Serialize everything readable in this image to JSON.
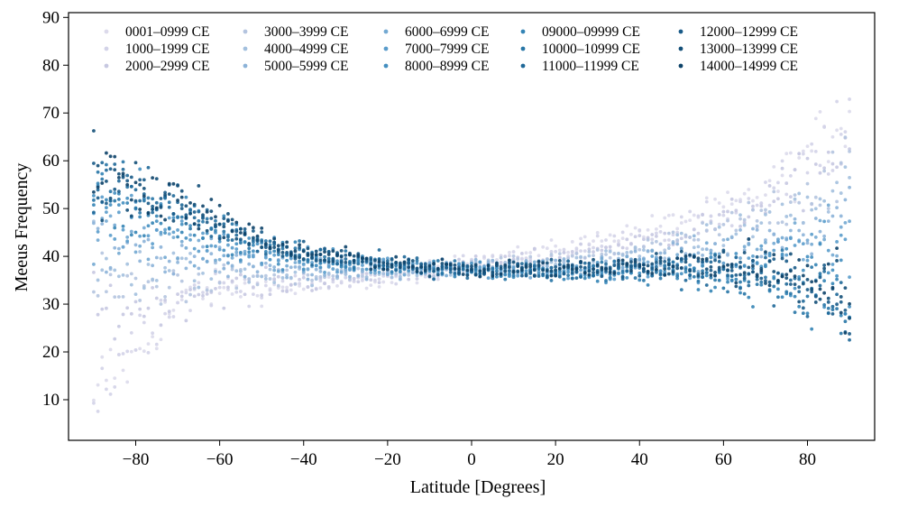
{
  "chart_data": {
    "type": "scatter",
    "title": "",
    "xlabel": "Latitude [Degrees]",
    "ylabel": "Meeus Frequency",
    "xlim": [
      -96,
      96
    ],
    "ylim": [
      1.5,
      91
    ],
    "xticks": [
      -80,
      -60,
      -40,
      -20,
      0,
      20,
      40,
      60,
      80
    ],
    "xtick_labels": [
      "−80",
      "−60",
      "−40",
      "−20",
      "0",
      "20",
      "40",
      "60",
      "80"
    ],
    "yticks": [
      10,
      20,
      30,
      40,
      50,
      60,
      70,
      80,
      90
    ],
    "ytick_labels": [
      "10",
      "20",
      "30",
      "40",
      "50",
      "60",
      "70",
      "80",
      "90"
    ],
    "grid": false,
    "legend_position": "top",
    "legend_columns": 5,
    "x_step_degrees": 1,
    "x_range": [
      -90,
      90
    ],
    "series": [
      {
        "name": "0001–0999 CE",
        "color": "#dcdaeb",
        "anchors": [
          [
            -90,
            5.7
          ],
          [
            -88,
            14.8
          ],
          [
            -85,
            16.5
          ],
          [
            -80,
            18
          ],
          [
            -77,
            23
          ],
          [
            -72,
            28.5
          ],
          [
            -65,
            32.5
          ],
          [
            -55,
            33.5
          ],
          [
            -45,
            33.3
          ],
          [
            -35,
            33.8
          ],
          [
            -20,
            35
          ],
          [
            0,
            39
          ],
          [
            20,
            41.5
          ],
          [
            40,
            45.5
          ],
          [
            55,
            48.5
          ],
          [
            65,
            51
          ],
          [
            75,
            57
          ],
          [
            85,
            66
          ],
          [
            90,
            71
          ]
        ]
      },
      {
        "name": "1000–1999 CE",
        "color": "#d3d3e8",
        "anchors": [
          [
            -90,
            9.8
          ],
          [
            -87,
            14
          ],
          [
            -82,
            22
          ],
          [
            -77,
            26
          ],
          [
            -72,
            30
          ],
          [
            -65,
            33
          ],
          [
            -55,
            33.5
          ],
          [
            -45,
            34
          ],
          [
            -35,
            34.5
          ],
          [
            -20,
            35.5
          ],
          [
            0,
            38.5
          ],
          [
            20,
            40.5
          ],
          [
            40,
            44
          ],
          [
            55,
            47
          ],
          [
            65,
            50
          ],
          [
            75,
            55
          ],
          [
            85,
            63
          ],
          [
            90,
            68
          ]
        ]
      },
      {
        "name": "2000–2999 CE",
        "color": "#c7c8e1",
        "anchors": [
          [
            -90,
            28
          ],
          [
            -85,
            28.5
          ],
          [
            -78,
            30
          ],
          [
            -70,
            32
          ],
          [
            -60,
            33.5
          ],
          [
            -50,
            34
          ],
          [
            -40,
            34.5
          ],
          [
            -20,
            36
          ],
          [
            0,
            38
          ],
          [
            20,
            40
          ],
          [
            40,
            43
          ],
          [
            55,
            46
          ],
          [
            65,
            49
          ],
          [
            75,
            53
          ],
          [
            85,
            60
          ],
          [
            90,
            64
          ]
        ]
      },
      {
        "name": "3000–3999 CE",
        "color": "#b4c4df",
        "anchors": [
          [
            -90,
            32
          ],
          [
            -80,
            33
          ],
          [
            -70,
            34.5
          ],
          [
            -60,
            35.5
          ],
          [
            -50,
            35.5
          ],
          [
            -40,
            35.5
          ],
          [
            -20,
            36.5
          ],
          [
            0,
            37.5
          ],
          [
            20,
            39
          ],
          [
            40,
            41.5
          ],
          [
            55,
            44
          ],
          [
            65,
            47.5
          ],
          [
            75,
            51
          ],
          [
            85,
            56
          ],
          [
            90,
            60
          ]
        ]
      },
      {
        "name": "4000–4999 CE",
        "color": "#a3c0de",
        "anchors": [
          [
            -90,
            37
          ],
          [
            -80,
            37
          ],
          [
            -70,
            37.5
          ],
          [
            -60,
            37.5
          ],
          [
            -50,
            37
          ],
          [
            -40,
            36.5
          ],
          [
            -20,
            37
          ],
          [
            0,
            37.5
          ],
          [
            20,
            38.5
          ],
          [
            40,
            40.5
          ],
          [
            55,
            42.5
          ],
          [
            65,
            45
          ],
          [
            75,
            48.5
          ],
          [
            85,
            52
          ],
          [
            90,
            56
          ]
        ]
      },
      {
        "name": "5000–5999 CE",
        "color": "#8cb3d8",
        "anchors": [
          [
            -90,
            42
          ],
          [
            -80,
            41
          ],
          [
            -70,
            40
          ],
          [
            -60,
            39
          ],
          [
            -50,
            38
          ],
          [
            -40,
            37.5
          ],
          [
            -20,
            37.5
          ],
          [
            0,
            37.5
          ],
          [
            20,
            38
          ],
          [
            40,
            39.5
          ],
          [
            55,
            41
          ],
          [
            65,
            43
          ],
          [
            75,
            45.5
          ],
          [
            85,
            48
          ],
          [
            90,
            50
          ]
        ]
      },
      {
        "name": "6000–6999 CE",
        "color": "#73a9d2",
        "anchors": [
          [
            -90,
            46
          ],
          [
            -80,
            44.5
          ],
          [
            -70,
            42.5
          ],
          [
            -60,
            40.5
          ],
          [
            -50,
            39
          ],
          [
            -40,
            38
          ],
          [
            -20,
            37.5
          ],
          [
            0,
            37
          ],
          [
            20,
            37.5
          ],
          [
            40,
            38.5
          ],
          [
            55,
            39.5
          ],
          [
            65,
            41
          ],
          [
            75,
            43
          ],
          [
            85,
            45
          ],
          [
            90,
            46
          ]
        ]
      },
      {
        "name": "7000–7999 CE",
        "color": "#5a9ccb",
        "anchors": [
          [
            -90,
            49
          ],
          [
            -80,
            47.5
          ],
          [
            -70,
            45
          ],
          [
            -60,
            42.5
          ],
          [
            -50,
            40.5
          ],
          [
            -40,
            39
          ],
          [
            -20,
            38
          ],
          [
            0,
            37
          ],
          [
            20,
            37
          ],
          [
            40,
            37.5
          ],
          [
            55,
            38
          ],
          [
            65,
            39
          ],
          [
            75,
            40
          ],
          [
            85,
            41
          ],
          [
            90,
            41
          ]
        ]
      },
      {
        "name": "8000–8999 CE",
        "color": "#448fc0",
        "anchors": [
          [
            -90,
            51
          ],
          [
            -80,
            49.5
          ],
          [
            -70,
            47
          ],
          [
            -60,
            44
          ],
          [
            -50,
            41.5
          ],
          [
            -40,
            39.5
          ],
          [
            -20,
            38
          ],
          [
            0,
            37
          ],
          [
            20,
            36.5
          ],
          [
            40,
            37
          ],
          [
            55,
            37
          ],
          [
            65,
            37
          ],
          [
            75,
            37
          ],
          [
            85,
            37
          ],
          [
            90,
            36
          ]
        ]
      },
      {
        "name": "09000–09999 CE",
        "color": "#3484b5",
        "anchors": [
          [
            -90,
            53
          ],
          [
            -80,
            51
          ],
          [
            -70,
            48.5
          ],
          [
            -60,
            45
          ],
          [
            -50,
            42
          ],
          [
            -40,
            40
          ],
          [
            -20,
            38.5
          ],
          [
            0,
            37
          ],
          [
            20,
            36.5
          ],
          [
            40,
            36.5
          ],
          [
            55,
            36
          ],
          [
            65,
            35
          ],
          [
            75,
            34
          ],
          [
            85,
            32
          ],
          [
            90,
            30
          ]
        ]
      },
      {
        "name": "10000–10999 CE",
        "color": "#2876a6",
        "anchors": [
          [
            -90,
            55
          ],
          [
            -80,
            52
          ],
          [
            -70,
            49
          ],
          [
            -60,
            45.5
          ],
          [
            -50,
            42.5
          ],
          [
            -40,
            40
          ],
          [
            -20,
            38.5
          ],
          [
            0,
            37
          ],
          [
            20,
            36.5
          ],
          [
            40,
            37
          ],
          [
            55,
            36.5
          ],
          [
            65,
            35.5
          ],
          [
            75,
            33.5
          ],
          [
            85,
            30.5
          ],
          [
            90,
            27
          ]
        ]
      },
      {
        "name": "11000–11999 CE",
        "color": "#1f6898",
        "anchors": [
          [
            -90,
            56
          ],
          [
            -80,
            53
          ],
          [
            -70,
            50
          ],
          [
            -60,
            46
          ],
          [
            -50,
            42.5
          ],
          [
            -40,
            40
          ],
          [
            -20,
            38.5
          ],
          [
            0,
            37
          ],
          [
            20,
            37
          ],
          [
            40,
            37.5
          ],
          [
            55,
            37.5
          ],
          [
            65,
            36.5
          ],
          [
            75,
            34.5
          ],
          [
            85,
            31
          ],
          [
            90,
            26
          ]
        ]
      },
      {
        "name": "12000–12999 CE",
        "color": "#195b88",
        "anchors": [
          [
            -90,
            57
          ],
          [
            -80,
            54
          ],
          [
            -70,
            50.5
          ],
          [
            -60,
            46.5
          ],
          [
            -50,
            43
          ],
          [
            -40,
            40.5
          ],
          [
            -20,
            38.5
          ],
          [
            0,
            37
          ],
          [
            20,
            37.5
          ],
          [
            40,
            38
          ],
          [
            55,
            38
          ],
          [
            65,
            37.5
          ],
          [
            75,
            35.5
          ],
          [
            85,
            32
          ],
          [
            90,
            27
          ]
        ]
      },
      {
        "name": "13000–13999 CE",
        "color": "#134f78",
        "anchors": [
          [
            -90,
            58
          ],
          [
            -80,
            54.5
          ],
          [
            -70,
            51
          ],
          [
            -60,
            47
          ],
          [
            -50,
            43
          ],
          [
            -40,
            40.5
          ],
          [
            -20,
            38.5
          ],
          [
            0,
            37
          ],
          [
            20,
            37.5
          ],
          [
            40,
            38.5
          ],
          [
            55,
            38.5
          ],
          [
            65,
            38
          ],
          [
            75,
            36.5
          ],
          [
            85,
            33
          ],
          [
            90,
            29
          ]
        ]
      },
      {
        "name": "14000–14999 CE",
        "color": "#0d4369",
        "anchors": [
          [
            -90,
            59
          ],
          [
            -80,
            55
          ],
          [
            -70,
            51.5
          ],
          [
            -60,
            47.5
          ],
          [
            -50,
            43.5
          ],
          [
            -40,
            41
          ],
          [
            -20,
            38.5
          ],
          [
            0,
            37
          ],
          [
            20,
            37.5
          ],
          [
            40,
            38.5
          ],
          [
            55,
            38.5
          ],
          [
            65,
            38
          ],
          [
            75,
            37
          ],
          [
            85,
            34
          ],
          [
            90,
            31
          ]
        ]
      }
    ]
  }
}
